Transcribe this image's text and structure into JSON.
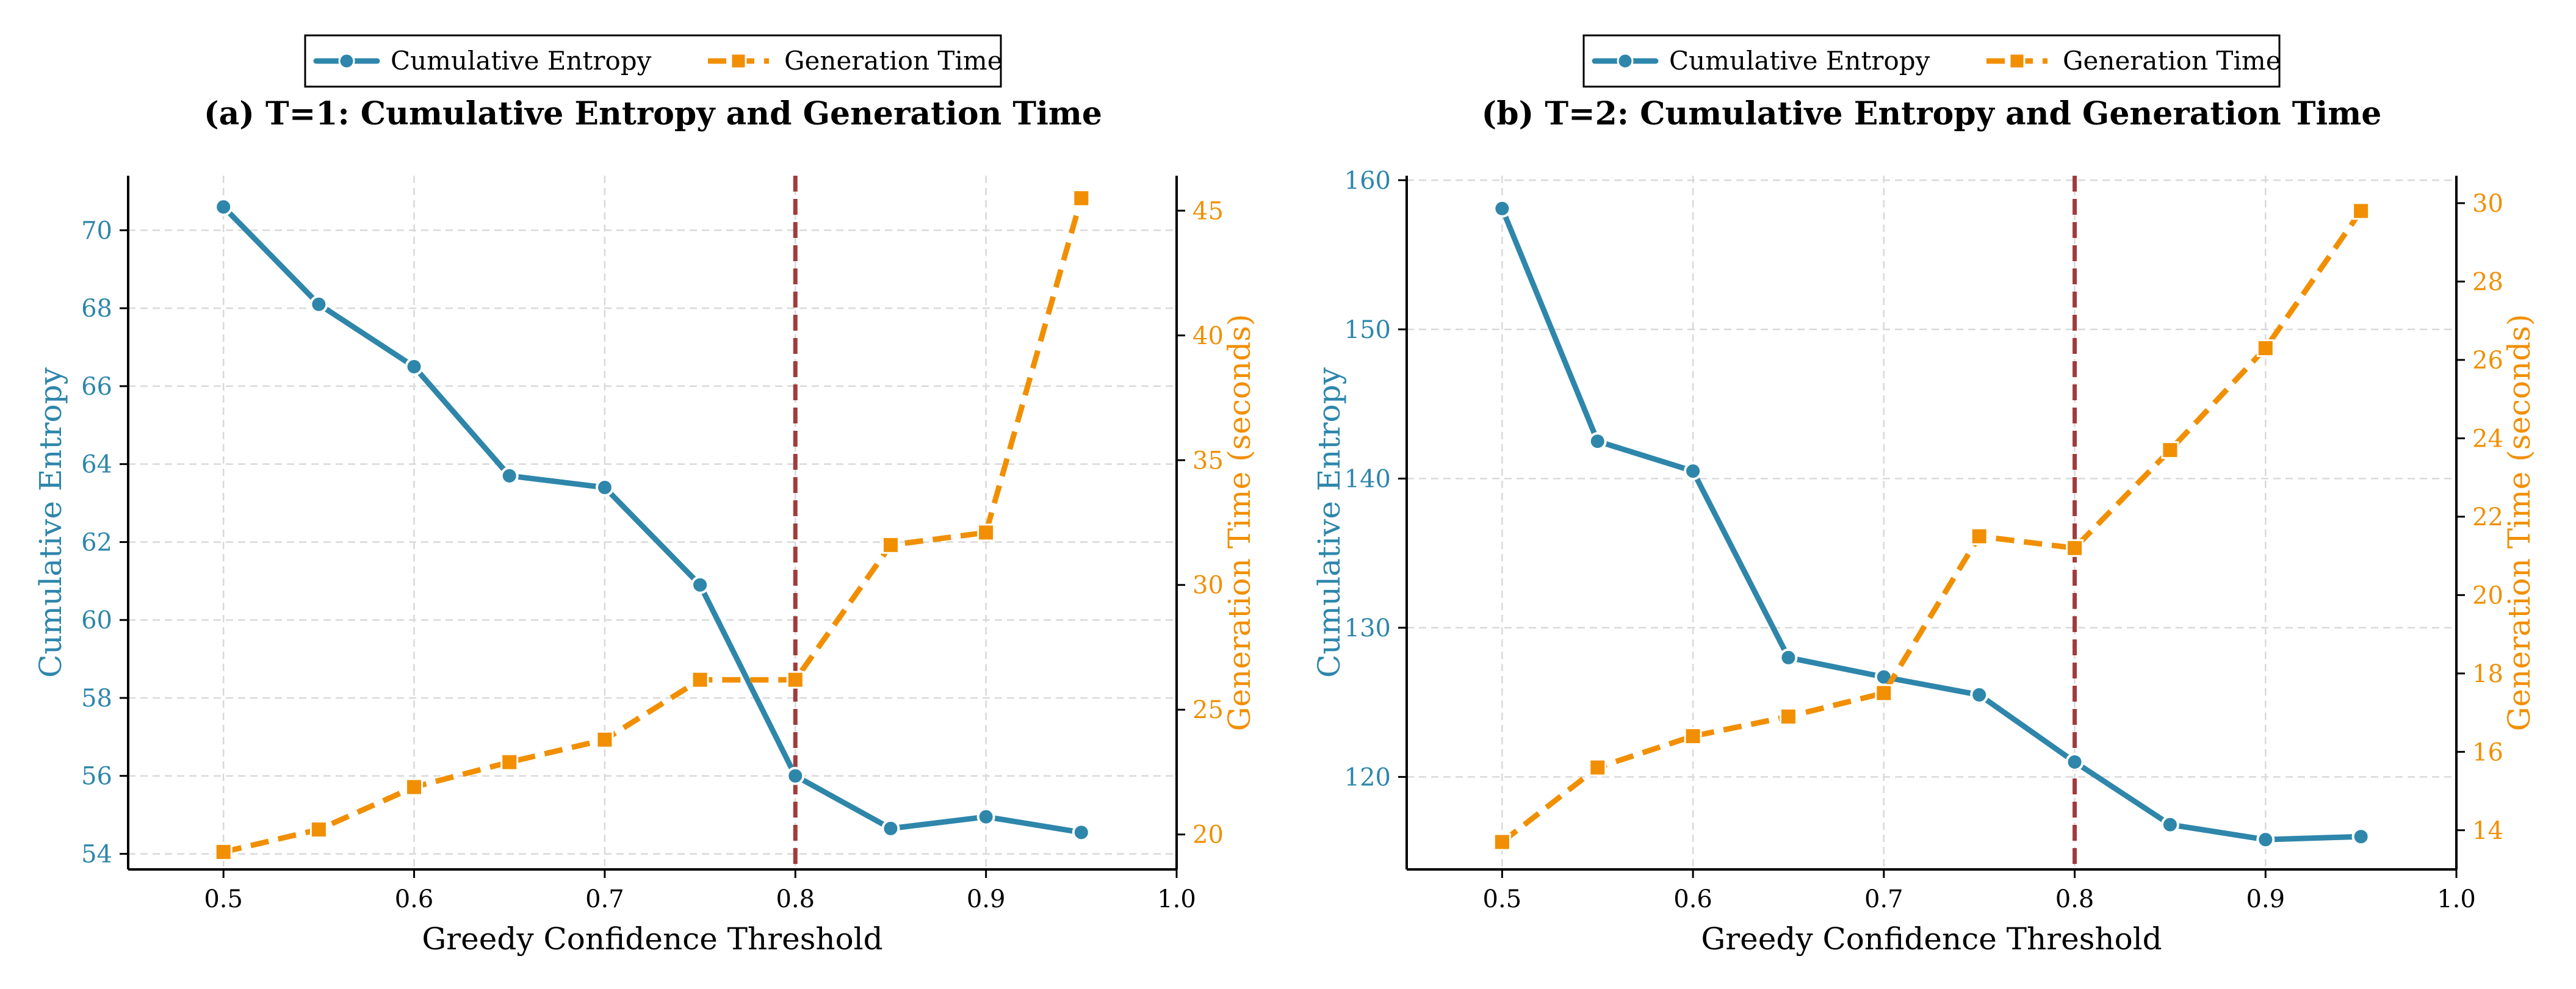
{
  "colors": {
    "entropy": "#2E86AB",
    "time": "#F18F01",
    "threshold": "#A23B3B",
    "grid": "#d9d9d9"
  },
  "chart_data": [
    {
      "type": "line",
      "title": "(a) T=1: Cumulative Entropy and Generation Time",
      "xlabel": "Greedy Confidence Threshold",
      "ylabel_left": "Cumulative Entropy",
      "ylabel_right": "Generation Time (seconds)",
      "x": [
        0.5,
        0.55,
        0.6,
        0.65,
        0.7,
        0.75,
        0.8,
        0.85,
        0.9,
        0.95
      ],
      "xlim": [
        0.45,
        1.0
      ],
      "xticks": [
        0.5,
        0.6,
        0.7,
        0.8,
        0.9,
        1.0
      ],
      "xtick_labels": [
        "0.5",
        "0.6",
        "0.7",
        "0.8",
        "0.9",
        "1.0"
      ],
      "ylim_left": [
        53.6,
        71.4
      ],
      "yticks_left": [
        54,
        56,
        58,
        60,
        62,
        64,
        66,
        68,
        70
      ],
      "ytick_labels_left": [
        "54",
        "56",
        "58",
        "60",
        "62",
        "64",
        "66",
        "68",
        "70"
      ],
      "ylim_right": [
        18.6,
        46.4
      ],
      "yticks_right": [
        20,
        25,
        30,
        35,
        40,
        45
      ],
      "ytick_labels_right": [
        "20",
        "25",
        "30",
        "35",
        "40",
        "45"
      ],
      "threshold_line": 0.8,
      "legend": [
        "Cumulative Entropy",
        "Generation Time"
      ],
      "legend_position": "top-center",
      "series": [
        {
          "name": "Cumulative Entropy",
          "axis": "left",
          "marker": "circle",
          "style": "solid",
          "values": [
            70.6,
            68.1,
            66.5,
            63.7,
            63.4,
            60.9,
            56.0,
            54.65,
            54.95,
            54.55
          ]
        },
        {
          "name": "Generation Time",
          "axis": "right",
          "marker": "square",
          "style": "dashed",
          "values": [
            19.3,
            20.2,
            21.9,
            22.9,
            23.8,
            26.2,
            26.2,
            31.6,
            32.1,
            45.5
          ]
        }
      ]
    },
    {
      "type": "line",
      "title": "(b) T=2: Cumulative Entropy and Generation Time",
      "xlabel": "Greedy Confidence Threshold",
      "ylabel_left": "Cumulative Entropy",
      "ylabel_right": "Generation Time (seconds)",
      "x": [
        0.5,
        0.55,
        0.6,
        0.65,
        0.7,
        0.75,
        0.8,
        0.85,
        0.9,
        0.95
      ],
      "xlim": [
        0.45,
        1.0
      ],
      "xticks": [
        0.5,
        0.6,
        0.7,
        0.8,
        0.9,
        1.0
      ],
      "xtick_labels": [
        "0.5",
        "0.6",
        "0.7",
        "0.8",
        "0.9",
        "1.0"
      ],
      "ylim_left": [
        113.8,
        160.3
      ],
      "yticks_left": [
        120,
        130,
        140,
        150,
        160
      ],
      "ytick_labels_left": [
        "120",
        "130",
        "140",
        "150",
        "160"
      ],
      "ylim_right": [
        13.0,
        30.7
      ],
      "yticks_right": [
        14,
        16,
        18,
        20,
        22,
        24,
        26,
        28,
        30
      ],
      "ytick_labels_right": [
        "14",
        "16",
        "18",
        "20",
        "22",
        "24",
        "26",
        "28",
        "30"
      ],
      "threshold_line": 0.8,
      "legend": [
        "Cumulative Entropy",
        "Generation Time"
      ],
      "legend_position": "top-center",
      "series": [
        {
          "name": "Cumulative Entropy",
          "axis": "left",
          "marker": "circle",
          "style": "solid",
          "values": [
            158.1,
            142.5,
            140.5,
            128.0,
            126.7,
            125.5,
            121.0,
            116.8,
            115.8,
            116.0
          ]
        },
        {
          "name": "Generation Time",
          "axis": "right",
          "marker": "square",
          "style": "dashed",
          "values": [
            13.7,
            15.6,
            16.4,
            16.9,
            17.5,
            21.5,
            21.2,
            23.7,
            26.3,
            29.8
          ]
        }
      ]
    }
  ]
}
